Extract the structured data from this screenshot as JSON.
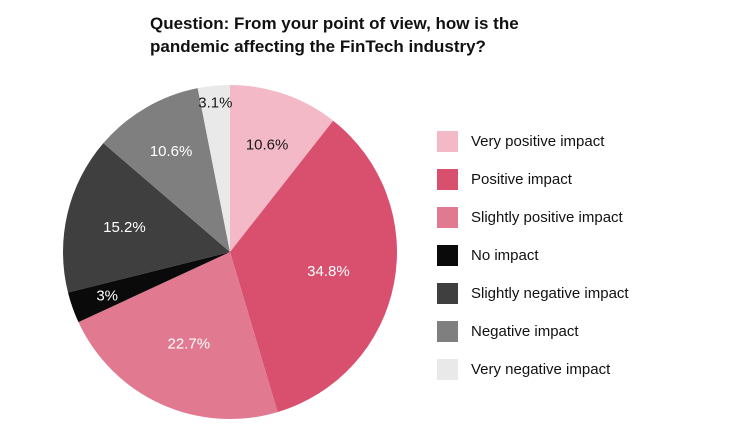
{
  "title": "Question: From your point of view, how is the pandemic affecting the FinTech industry?",
  "chart_data": {
    "type": "pie",
    "title": "Question: From your point of view, how is the pandemic affecting the FinTech industry?",
    "direction": "clockwise",
    "start_angle_deg": 0,
    "legend_position": "right",
    "total": 100,
    "slices": [
      {
        "label": "Very positive impact",
        "value": 10.6,
        "display": "10.6%",
        "color": "#f3b9c7",
        "label_color": "#1a1a1a",
        "label_radius": 0.68
      },
      {
        "label": "Positive impact",
        "value": 34.8,
        "display": "34.8%",
        "color": "#d9506f",
        "label_color": "#ffffff",
        "label_radius": 0.6
      },
      {
        "label": "Slightly positive impact",
        "value": 22.7,
        "display": "22.7%",
        "color": "#e17a90",
        "label_color": "#ffffff",
        "label_radius": 0.6
      },
      {
        "label": "No impact",
        "value": 3.0,
        "display": "3%",
        "color": "#0a0a0a",
        "label_color": "#ffffff",
        "label_radius": 0.78
      },
      {
        "label": "Slightly negative impact",
        "value": 15.2,
        "display": "15.2%",
        "color": "#3f3f3f",
        "label_color": "#ffffff",
        "label_radius": 0.65
      },
      {
        "label": "Negative impact",
        "value": 10.6,
        "display": "10.6%",
        "color": "#7f7f7f",
        "label_color": "#ffffff",
        "label_radius": 0.7
      },
      {
        "label": "Very negative impact",
        "value": 3.1,
        "display": "3.1%",
        "color": "#e9e9e9",
        "label_color": "#1a1a1a",
        "label_radius": 0.9
      }
    ]
  }
}
